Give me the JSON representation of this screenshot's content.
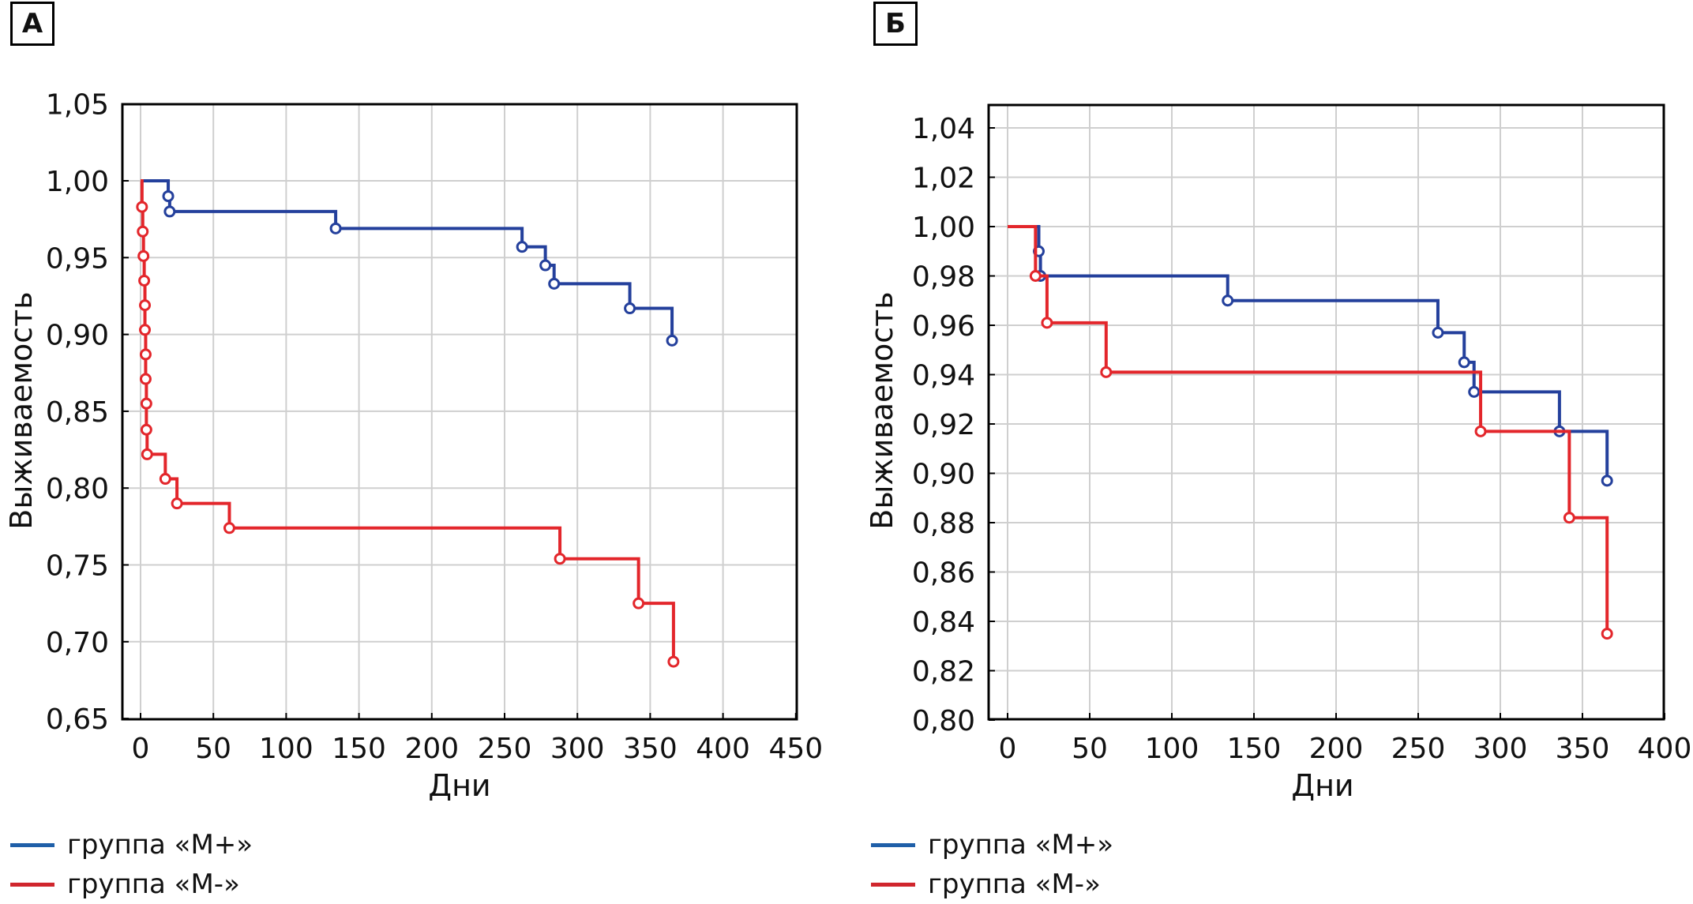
{
  "panels": [
    {
      "label": "А"
    },
    {
      "label": "Б"
    }
  ],
  "legend": [
    {
      "name": "группа «М+»",
      "color": "#1f5fa8"
    },
    {
      "name": "группа «М-»",
      "color": "#d0262d"
    }
  ],
  "chart_data": [
    {
      "type": "line",
      "subtype": "kaplan-meier step",
      "title": "А",
      "xlabel": "Дни",
      "ylabel": "Выживаемость",
      "xlim": [
        0,
        450
      ],
      "ylim": [
        0.65,
        1.05
      ],
      "xticks": [
        0,
        50,
        100,
        150,
        200,
        250,
        300,
        350,
        400,
        450
      ],
      "xtick_labels": [
        "0",
        "50",
        "100",
        "150",
        "200",
        "250",
        "300",
        "350",
        "400",
        "450"
      ],
      "yticks": [
        0.65,
        0.7,
        0.75,
        0.8,
        0.85,
        0.9,
        0.95,
        1.0,
        1.05
      ],
      "ytick_labels": [
        "0,65",
        "0,70",
        "0,75",
        "0,80",
        "0,85",
        "0,90",
        "0,95",
        "1,00",
        "1,05"
      ],
      "grid": true,
      "legend": "bottom-left",
      "series": [
        {
          "name": "группа «М+»",
          "color": "#24409c",
          "steps": [
            [
              0,
              1.0
            ],
            [
              19,
              0.99
            ],
            [
              20,
              0.98
            ],
            [
              134,
              0.969
            ],
            [
              262,
              0.957
            ],
            [
              278,
              0.945
            ],
            [
              284,
              0.933
            ],
            [
              336,
              0.917
            ],
            [
              365,
              0.896
            ]
          ],
          "markers": [
            [
              19,
              0.99
            ],
            [
              20,
              0.98
            ],
            [
              134,
              0.969
            ],
            [
              262,
              0.957
            ],
            [
              278,
              0.945
            ],
            [
              284,
              0.933
            ],
            [
              336,
              0.917
            ],
            [
              365,
              0.896
            ]
          ]
        },
        {
          "name": "группа «М-»",
          "color": "#e3262b",
          "steps": [
            [
              0,
              1.0
            ],
            [
              1,
              0.983
            ],
            [
              1.5,
              0.967
            ],
            [
              2,
              0.951
            ],
            [
              2.5,
              0.935
            ],
            [
              3,
              0.919
            ],
            [
              3,
              0.903
            ],
            [
              3.5,
              0.887
            ],
            [
              3.5,
              0.871
            ],
            [
              4,
              0.855
            ],
            [
              4,
              0.838
            ],
            [
              4.5,
              0.822
            ],
            [
              17,
              0.806
            ],
            [
              25,
              0.79
            ],
            [
              61,
              0.774
            ],
            [
              288,
              0.754
            ],
            [
              342,
              0.725
            ],
            [
              366,
              0.687
            ]
          ],
          "markers": [
            [
              1,
              0.983
            ],
            [
              1.5,
              0.967
            ],
            [
              2,
              0.951
            ],
            [
              2.5,
              0.935
            ],
            [
              3,
              0.919
            ],
            [
              3,
              0.903
            ],
            [
              3.5,
              0.887
            ],
            [
              3.5,
              0.871
            ],
            [
              4,
              0.855
            ],
            [
              4,
              0.838
            ],
            [
              4.5,
              0.822
            ],
            [
              17,
              0.806
            ],
            [
              25,
              0.79
            ],
            [
              61,
              0.774
            ],
            [
              288,
              0.754
            ],
            [
              342,
              0.725
            ],
            [
              366,
              0.687
            ]
          ]
        }
      ]
    },
    {
      "type": "line",
      "subtype": "kaplan-meier step",
      "title": "Б",
      "xlabel": "Дни",
      "ylabel": "Выживаемость",
      "xlim": [
        0,
        400
      ],
      "ylim": [
        0.8,
        1.05
      ],
      "xticks": [
        0,
        50,
        100,
        150,
        200,
        250,
        300,
        350,
        400
      ],
      "xtick_labels": [
        "0",
        "50",
        "100",
        "150",
        "200",
        "250",
        "300",
        "350",
        "400"
      ],
      "yticks": [
        0.8,
        0.82,
        0.84,
        0.86,
        0.88,
        0.9,
        0.92,
        0.94,
        0.96,
        0.98,
        1.0,
        1.02,
        1.04
      ],
      "ytick_labels": [
        "0,80",
        "0,82",
        "0,84",
        "0,86",
        "0,88",
        "0,90",
        "0,92",
        "0,94",
        "0,96",
        "0,98",
        "1,00",
        "1,02",
        "1,04"
      ],
      "grid": true,
      "legend": "bottom-left",
      "series": [
        {
          "name": "группа «М+»",
          "color": "#24409c",
          "steps": [
            [
              0,
              1.0
            ],
            [
              19,
              0.99
            ],
            [
              20,
              0.98
            ],
            [
              134,
              0.97
            ],
            [
              262,
              0.957
            ],
            [
              278,
              0.945
            ],
            [
              284,
              0.933
            ],
            [
              336,
              0.917
            ],
            [
              365,
              0.897
            ]
          ],
          "markers": [
            [
              19,
              0.99
            ],
            [
              20,
              0.98
            ],
            [
              134,
              0.97
            ],
            [
              262,
              0.957
            ],
            [
              278,
              0.945
            ],
            [
              284,
              0.933
            ],
            [
              336,
              0.917
            ],
            [
              365,
              0.897
            ]
          ]
        },
        {
          "name": "группа «М-»",
          "color": "#e3262b",
          "steps": [
            [
              0,
              1.0
            ],
            [
              17,
              0.98
            ],
            [
              24,
              0.961
            ],
            [
              60,
              0.941
            ],
            [
              288,
              0.917
            ],
            [
              342,
              0.882
            ],
            [
              365,
              0.835
            ]
          ],
          "markers": [
            [
              17,
              0.98
            ],
            [
              24,
              0.961
            ],
            [
              60,
              0.941
            ],
            [
              288,
              0.917
            ],
            [
              342,
              0.882
            ],
            [
              365,
              0.835
            ]
          ]
        }
      ]
    }
  ]
}
